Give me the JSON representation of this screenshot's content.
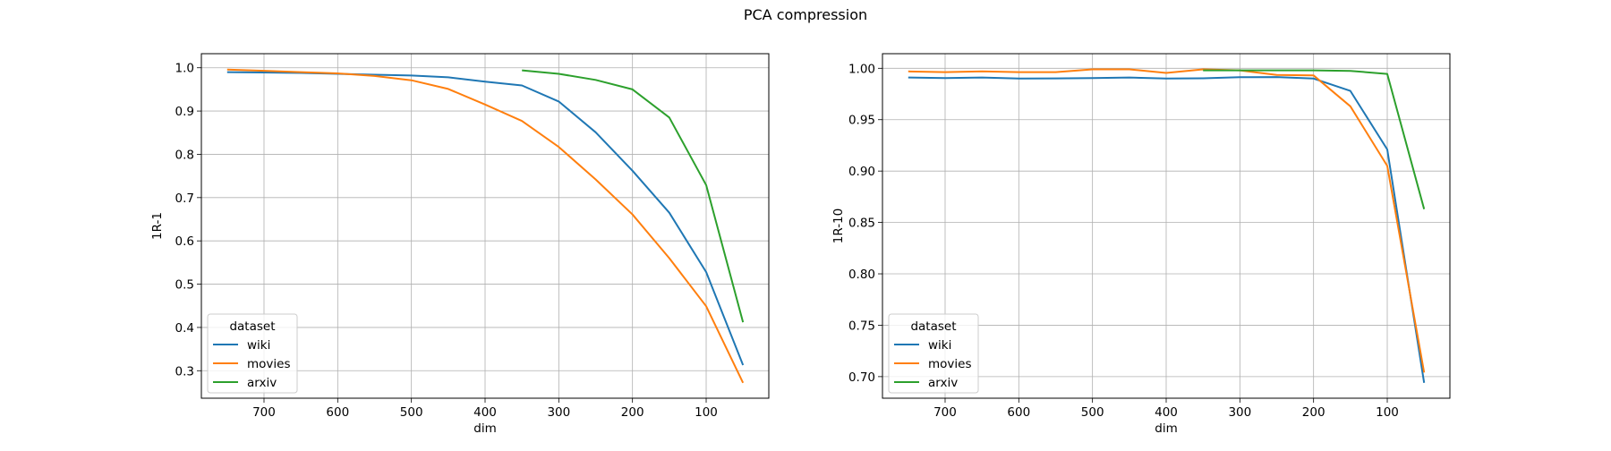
{
  "title": "PCA compression",
  "colors": {
    "wiki": "#1f77b4",
    "movies": "#ff7f0e",
    "arxiv": "#2ca02c",
    "grid": "#b0b0b0"
  },
  "chart_data": [
    {
      "type": "line",
      "xlabel": "dim",
      "ylabel": "1R-1",
      "xlim": [
        785,
        15
      ],
      "ylim": [
        0.2365,
        1.0325
      ],
      "xticks": [
        700,
        600,
        500,
        400,
        300,
        200,
        100
      ],
      "xtick_labels": [
        "700",
        "600",
        "500",
        "400",
        "300",
        "200",
        "100"
      ],
      "yticks": [
        0.3,
        0.4,
        0.5,
        0.6,
        0.7,
        0.8,
        0.9,
        1.0
      ],
      "ytick_labels": [
        "0.3",
        "0.4",
        "0.5",
        "0.6",
        "0.7",
        "0.8",
        "0.9",
        "1.0"
      ],
      "grid": true,
      "legend": {
        "title": "dataset",
        "placement": "lower-left",
        "entries": [
          "wiki",
          "movies",
          "arxiv"
        ]
      },
      "series": [
        {
          "name": "wiki",
          "x": [
            750,
            700,
            650,
            600,
            550,
            500,
            450,
            400,
            350,
            300,
            250,
            200,
            150,
            100,
            50
          ],
          "y": [
            0.99,
            0.989,
            0.988,
            0.986,
            0.984,
            0.982,
            0.978,
            0.968,
            0.959,
            0.922,
            0.851,
            0.762,
            0.665,
            0.528,
            0.313
          ]
        },
        {
          "name": "movies",
          "x": [
            750,
            700,
            650,
            600,
            550,
            500,
            450,
            400,
            350,
            300,
            250,
            200,
            150,
            100,
            50
          ],
          "y": [
            0.996,
            0.993,
            0.99,
            0.987,
            0.981,
            0.971,
            0.951,
            0.915,
            0.877,
            0.817,
            0.742,
            0.661,
            0.56,
            0.449,
            0.272
          ]
        },
        {
          "name": "arxiv",
          "x": [
            350,
            300,
            250,
            200,
            150,
            100,
            50
          ],
          "y": [
            0.994,
            0.986,
            0.972,
            0.95,
            0.885,
            0.729,
            0.412
          ]
        }
      ]
    },
    {
      "type": "line",
      "xlabel": "dim",
      "ylabel": "1R-10",
      "xlim": [
        785,
        15
      ],
      "ylim": [
        0.679,
        1.0142
      ],
      "xticks": [
        700,
        600,
        500,
        400,
        300,
        200,
        100
      ],
      "xtick_labels": [
        "700",
        "600",
        "500",
        "400",
        "300",
        "200",
        "100"
      ],
      "yticks": [
        0.7,
        0.75,
        0.8,
        0.85,
        0.9,
        0.95,
        1.0
      ],
      "ytick_labels": [
        "0.70",
        "0.75",
        "0.80",
        "0.85",
        "0.90",
        "0.95",
        "1.00"
      ],
      "grid": true,
      "legend": {
        "title": "dataset",
        "placement": "lower-left",
        "entries": [
          "wiki",
          "movies",
          "arxiv"
        ]
      },
      "series": [
        {
          "name": "wiki",
          "x": [
            750,
            700,
            650,
            600,
            550,
            500,
            450,
            400,
            350,
            300,
            250,
            200,
            150,
            100,
            50
          ],
          "y": [
            0.991,
            0.9905,
            0.991,
            0.99,
            0.9902,
            0.9905,
            0.991,
            0.99,
            0.9903,
            0.9913,
            0.9915,
            0.99,
            0.978,
            0.921,
            0.694
          ]
        },
        {
          "name": "movies",
          "x": [
            750,
            700,
            650,
            600,
            550,
            500,
            450,
            400,
            350,
            300,
            250,
            200,
            150,
            100,
            50
          ],
          "y": [
            0.997,
            0.9963,
            0.997,
            0.9963,
            0.9963,
            0.999,
            0.999,
            0.9955,
            0.999,
            0.998,
            0.9935,
            0.993,
            0.963,
            0.905,
            0.704
          ]
        },
        {
          "name": "arxiv",
          "x": [
            350,
            300,
            250,
            200,
            150,
            100,
            50
          ],
          "y": [
            0.998,
            0.998,
            0.998,
            0.998,
            0.9975,
            0.9945,
            0.863
          ]
        }
      ]
    }
  ]
}
